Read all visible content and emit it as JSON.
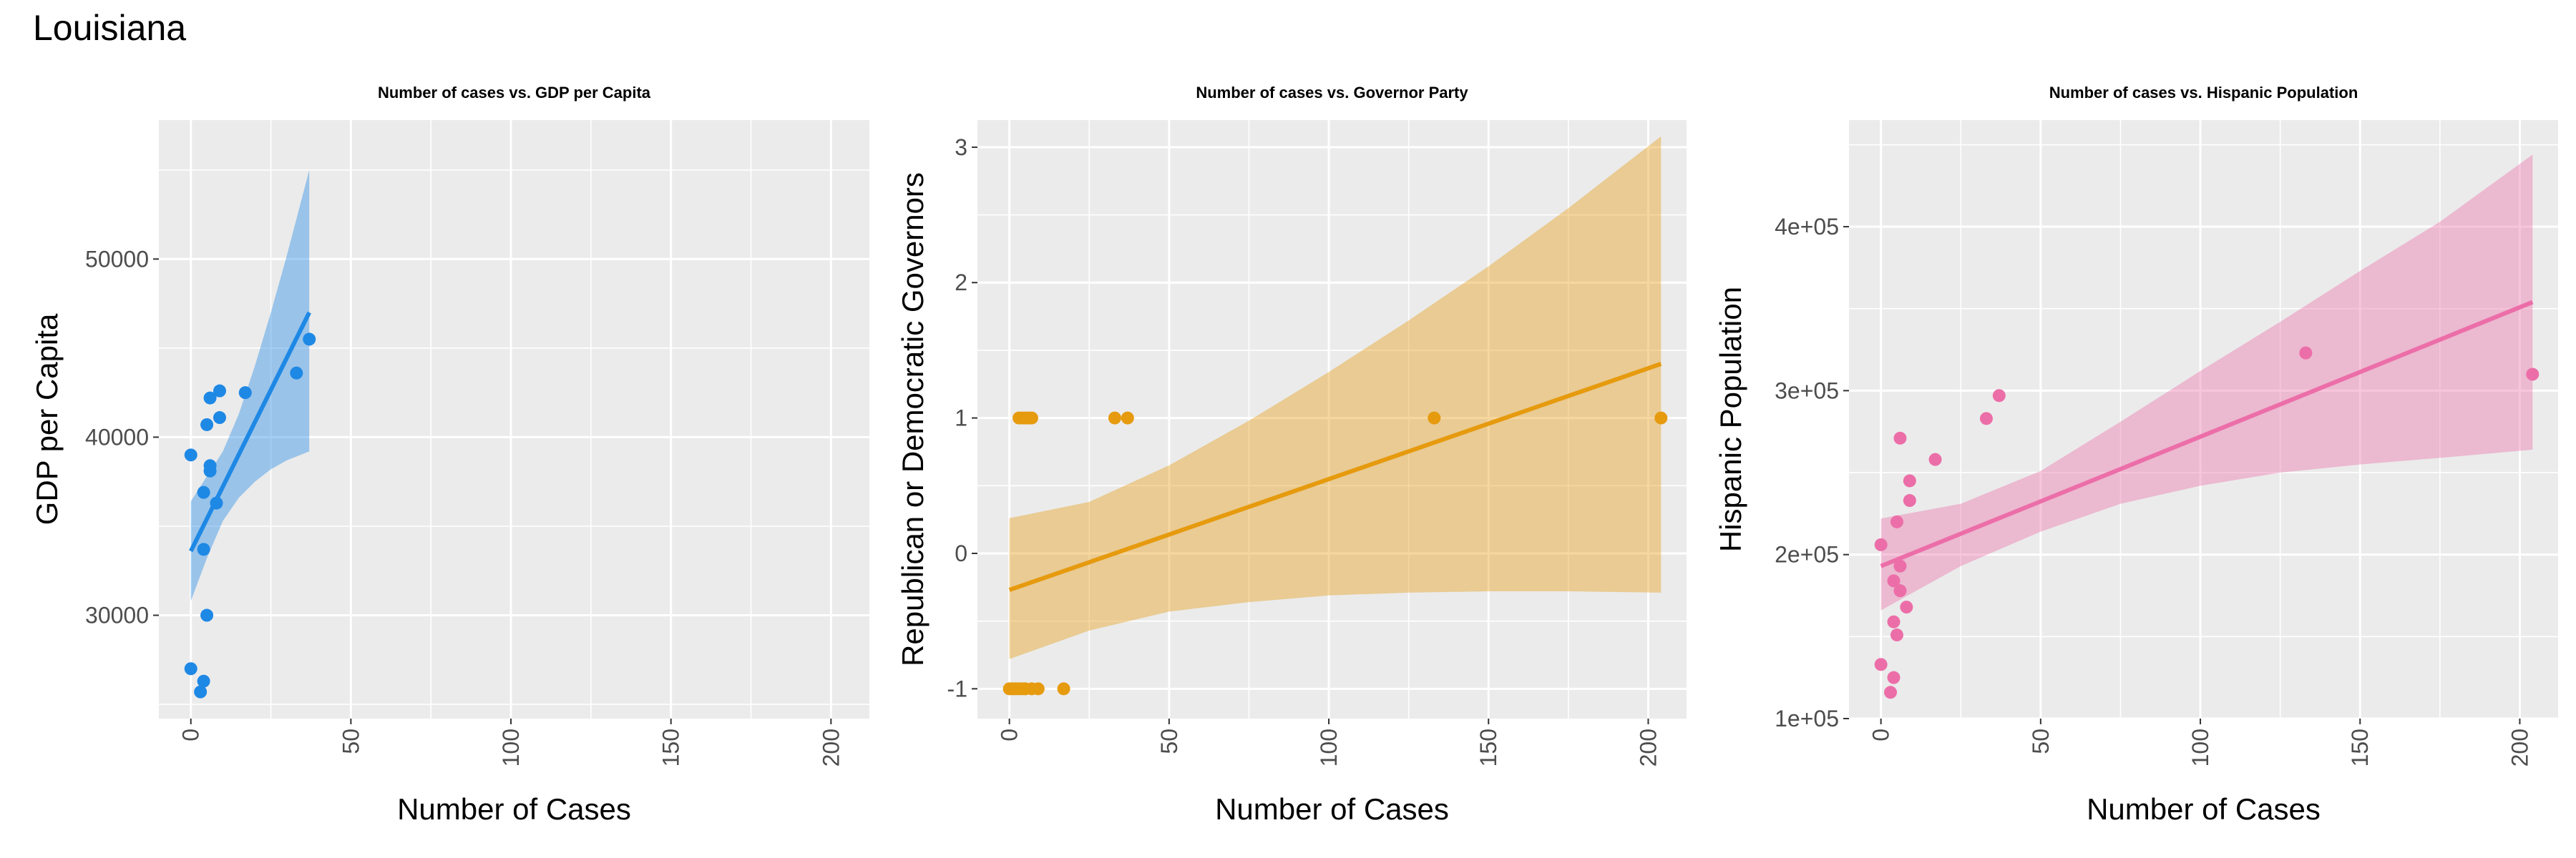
{
  "page": {
    "title": "Louisiana"
  },
  "chart_data": [
    {
      "type": "scatter",
      "title": "Number of cases vs. GDP per Capita",
      "xlabel": "Number of Cases",
      "ylabel": "GDP per Capita",
      "xlim": [
        -10,
        212
      ],
      "ylim": [
        24200,
        57800
      ],
      "x_ticks": [
        0,
        50,
        100,
        150,
        200
      ],
      "y_ticks": [
        30000,
        40000,
        50000
      ],
      "y_tick_labels": [
        "30000",
        "40000",
        "50000"
      ],
      "grid": true,
      "color": "#1E88E5",
      "points": [
        [
          0,
          39000
        ],
        [
          0,
          27000
        ],
        [
          3,
          25700
        ],
        [
          4,
          26300
        ],
        [
          4,
          33700
        ],
        [
          4,
          36900
        ],
        [
          5,
          30000
        ],
        [
          5,
          40700
        ],
        [
          6,
          42200
        ],
        [
          6,
          38100
        ],
        [
          6,
          38400
        ],
        [
          8,
          36300
        ],
        [
          9,
          41100
        ],
        [
          9,
          42600
        ],
        [
          17,
          42500
        ],
        [
          33,
          43600
        ],
        [
          37,
          45500
        ]
      ],
      "fit": {
        "x": [
          0,
          37
        ],
        "y": [
          33600,
          47000
        ]
      },
      "ci": {
        "x": [
          0,
          5,
          10,
          15,
          20,
          25,
          30,
          37
        ],
        "lo": [
          30800,
          33200,
          35300,
          36600,
          37500,
          38200,
          38700,
          39200
        ],
        "hi": [
          36400,
          37800,
          39200,
          41300,
          44000,
          47000,
          50200,
          55000
        ]
      }
    },
    {
      "type": "scatter",
      "title": "Number of cases vs. Governor Party",
      "xlabel": "Number of Cases",
      "ylabel": "Republican or Democratic Governors",
      "xlim": [
        -10,
        212
      ],
      "ylim": [
        -1.22,
        3.2
      ],
      "x_ticks": [
        0,
        50,
        100,
        150,
        200
      ],
      "y_ticks": [
        -1,
        0,
        1,
        2,
        3
      ],
      "y_tick_labels": [
        "-1",
        "0",
        "1",
        "2",
        "3"
      ],
      "grid": true,
      "color": "#E69A0E",
      "points": [
        [
          0,
          -1
        ],
        [
          1,
          -1
        ],
        [
          2,
          -1
        ],
        [
          3,
          -1
        ],
        [
          4,
          -1
        ],
        [
          5,
          -1
        ],
        [
          7,
          -1
        ],
        [
          9,
          -1
        ],
        [
          17,
          -1
        ],
        [
          3,
          1
        ],
        [
          4,
          1
        ],
        [
          5,
          1
        ],
        [
          6,
          1
        ],
        [
          7,
          1
        ],
        [
          33,
          1
        ],
        [
          37,
          1
        ],
        [
          133,
          1
        ],
        [
          204,
          1
        ]
      ],
      "fit": {
        "x": [
          0,
          204
        ],
        "y": [
          -0.27,
          1.4
        ]
      },
      "ci": {
        "x": [
          0,
          25,
          50,
          75,
          100,
          125,
          150,
          175,
          204
        ],
        "lo": [
          -0.78,
          -0.57,
          -0.43,
          -0.36,
          -0.31,
          -0.29,
          -0.28,
          -0.28,
          -0.29
        ],
        "hi": [
          0.26,
          0.38,
          0.65,
          0.98,
          1.34,
          1.72,
          2.12,
          2.55,
          3.08
        ]
      }
    },
    {
      "type": "scatter",
      "title": "Number of cases vs. Hispanic Population",
      "xlabel": "Number of Cases",
      "ylabel": "Hispanic Population",
      "xlim": [
        -10,
        212
      ],
      "ylim": [
        100000,
        465000
      ],
      "x_ticks": [
        0,
        50,
        100,
        150,
        200
      ],
      "y_ticks": [
        100000,
        200000,
        300000,
        400000
      ],
      "y_tick_labels": [
        "1e+05",
        "2e+05",
        "3e+05",
        "4e+05"
      ],
      "grid": true,
      "color": "#EC6EA8",
      "points": [
        [
          0,
          206000
        ],
        [
          0,
          133000
        ],
        [
          3,
          116000
        ],
        [
          4,
          125000
        ],
        [
          4,
          159000
        ],
        [
          4,
          184000
        ],
        [
          5,
          151000
        ],
        [
          5,
          220000
        ],
        [
          6,
          271000
        ],
        [
          6,
          193000
        ],
        [
          6,
          178000
        ],
        [
          8,
          168000
        ],
        [
          9,
          233000
        ],
        [
          9,
          245000
        ],
        [
          17,
          258000
        ],
        [
          33,
          283000
        ],
        [
          37,
          297000
        ],
        [
          133,
          323000
        ],
        [
          204,
          310000
        ]
      ],
      "fit": {
        "x": [
          0,
          204
        ],
        "y": [
          193000,
          354000
        ]
      },
      "ci": {
        "x": [
          0,
          25,
          50,
          75,
          100,
          125,
          150,
          175,
          204
        ],
        "lo": [
          166000,
          193000,
          214000,
          231000,
          242000,
          250000,
          255000,
          259000,
          264000
        ],
        "hi": [
          222000,
          231000,
          251000,
          281000,
          312000,
          342000,
          373000,
          403000,
          444000
        ]
      }
    }
  ]
}
